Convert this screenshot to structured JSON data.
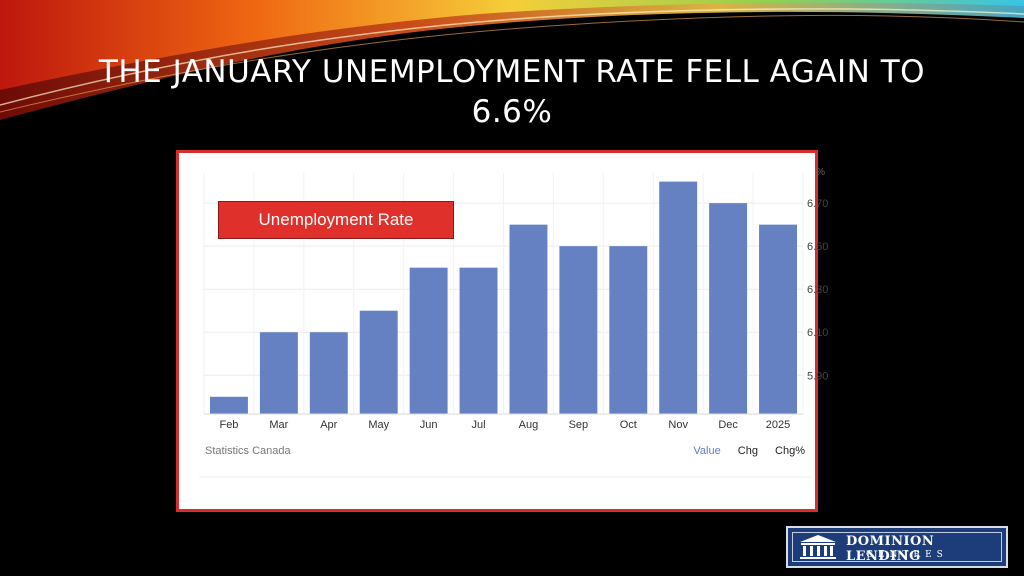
{
  "slide": {
    "title": "THE JANUARY UNEMPLOYMENT RATE FELL AGAIN TO 6.6%"
  },
  "chart_data": {
    "type": "bar",
    "categories": [
      "Feb",
      "Mar",
      "Apr",
      "May",
      "Jun",
      "Jul",
      "Aug",
      "Sep",
      "Oct",
      "Nov",
      "Dec",
      "2025"
    ],
    "values": [
      5.8,
      6.1,
      6.1,
      6.2,
      6.4,
      6.4,
      6.6,
      6.5,
      6.5,
      6.8,
      6.7,
      6.6
    ],
    "yticks": [
      "5.90",
      "6.10",
      "6.30",
      "6.50",
      "6.70"
    ],
    "ylim": [
      5.72,
      6.84
    ],
    "yunit": "%",
    "legend": "Unemployment Rate",
    "bar_color": "#6581c2",
    "source": "Statistics Canada",
    "tabs": [
      {
        "label": "Value",
        "active": true
      },
      {
        "label": "Chg",
        "active": false
      },
      {
        "label": "Chg%",
        "active": false
      }
    ]
  },
  "logo": {
    "name": "DOMINION LENDING",
    "sub": "CENTRES"
  }
}
